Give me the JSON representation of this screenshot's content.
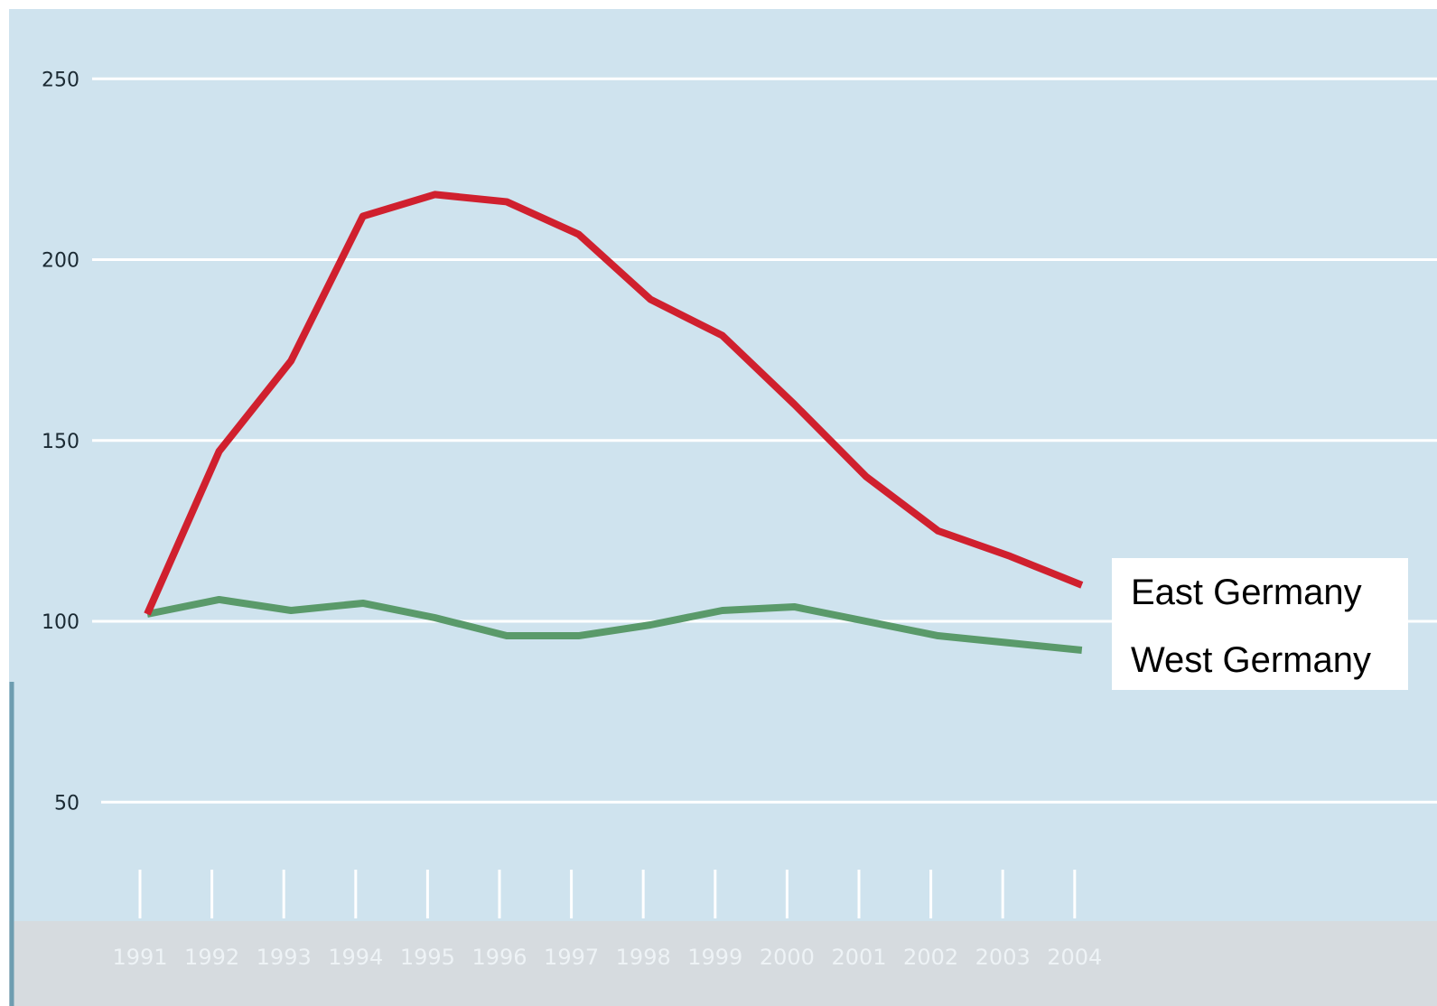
{
  "chart_data": {
    "type": "line",
    "title": "",
    "xlabel": "",
    "ylabel": "",
    "x": [
      1991,
      1992,
      1993,
      1994,
      1995,
      1996,
      1997,
      1998,
      1999,
      2000,
      2001,
      2002,
      2003,
      2004
    ],
    "x_tick_labels": [
      "1991",
      "1992",
      "1993",
      "1994",
      "1995",
      "1996",
      "1997",
      "1998",
      "1999",
      "2000",
      "2001",
      "2002",
      "2003",
      "2004"
    ],
    "y_ticks": [
      50,
      100,
      150,
      200,
      250
    ],
    "y_tick_labels": [
      "50",
      "100",
      "150",
      "200",
      "250"
    ],
    "ylim": [
      50,
      250
    ],
    "grid": "horizontal",
    "legend_position": "right",
    "series": [
      {
        "name": "East Germany",
        "color": "#d0202e",
        "values": [
          102,
          147,
          172,
          212,
          218,
          216,
          207,
          189,
          179,
          160,
          140,
          125,
          118,
          110
        ]
      },
      {
        "name": "West Germany",
        "color": "#5a9a6a",
        "values": [
          102,
          106,
          103,
          105,
          101,
          96,
          96,
          99,
          103,
          104,
          100,
          96,
          94,
          92
        ]
      }
    ],
    "colors": {
      "background": "#cfe3ee",
      "gridline": "#ffffff",
      "bottom_band": "#d6dbdf"
    }
  }
}
